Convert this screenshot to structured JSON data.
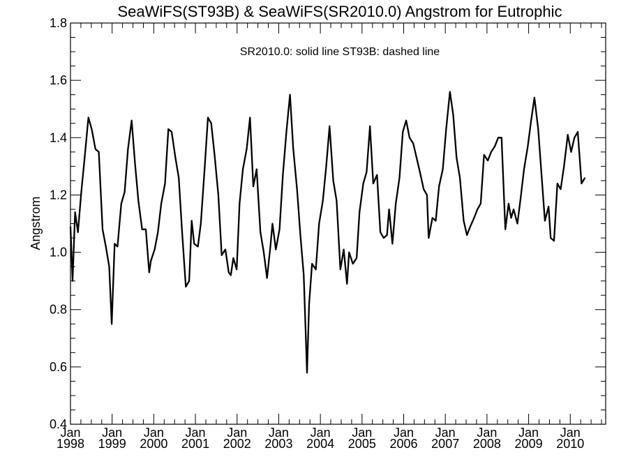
{
  "chart_data": {
    "type": "line",
    "title": "SeaWiFS(ST93B) & SeaWiFS(SR2010.0)  Angstrom for Eutrophic",
    "annotation": "SR2010.0: solid line   ST93B: dashed line",
    "xlabel": "",
    "ylabel": "Angstrom",
    "ylim": [
      0.4,
      1.8
    ],
    "yticks": [
      0.4,
      0.6,
      0.8,
      1.0,
      1.2,
      1.4,
      1.6,
      1.8
    ],
    "ytick_labels": [
      "0.4",
      "0.6",
      "0.8",
      "1.0",
      "1.2",
      "1.4",
      "1.6",
      "1.8"
    ],
    "xlim": [
      1998.0,
      2010.85
    ],
    "xticks": [
      {
        "x": 1998,
        "month": "Jan",
        "year": "1998"
      },
      {
        "x": 1999,
        "month": "Jan",
        "year": "1999"
      },
      {
        "x": 2000,
        "month": "Jan",
        "year": "2000"
      },
      {
        "x": 2001,
        "month": "Jan",
        "year": "2001"
      },
      {
        "x": 2002,
        "month": "Jan",
        "year": "2002"
      },
      {
        "x": 2003,
        "month": "Jan",
        "year": "2003"
      },
      {
        "x": 2004,
        "month": "Jan",
        "year": "2004"
      },
      {
        "x": 2005,
        "month": "Jan",
        "year": "2005"
      },
      {
        "x": 2006,
        "month": "Jan",
        "year": "2006"
      },
      {
        "x": 2007,
        "month": "Jan",
        "year": "2007"
      },
      {
        "x": 2008,
        "month": "Jan",
        "year": "2008"
      },
      {
        "x": 2009,
        "month": "Jan",
        "year": "2009"
      },
      {
        "x": 2010,
        "month": "Jan",
        "year": "2010"
      }
    ],
    "grid": false,
    "series": [
      {
        "name": "SR2010.0",
        "style": "solid",
        "color": "#000000",
        "points": [
          [
            1998.0,
            1.09
          ],
          [
            1998.05,
            0.9
          ],
          [
            1998.11,
            1.14
          ],
          [
            1998.18,
            1.07
          ],
          [
            1998.26,
            1.21
          ],
          [
            1998.34,
            1.33
          ],
          [
            1998.43,
            1.47
          ],
          [
            1998.51,
            1.43
          ],
          [
            1998.6,
            1.36
          ],
          [
            1998.68,
            1.35
          ],
          [
            1998.77,
            1.08
          ],
          [
            1998.85,
            1.02
          ],
          [
            1998.93,
            0.95
          ],
          [
            1998.99,
            0.75
          ],
          [
            1999.06,
            1.03
          ],
          [
            1999.13,
            1.02
          ],
          [
            1999.22,
            1.17
          ],
          [
            1999.3,
            1.21
          ],
          [
            1999.38,
            1.36
          ],
          [
            1999.47,
            1.46
          ],
          [
            1999.55,
            1.31
          ],
          [
            1999.63,
            1.18
          ],
          [
            1999.72,
            1.08
          ],
          [
            1999.81,
            1.08
          ],
          [
            1999.89,
            0.93
          ],
          [
            1999.93,
            0.97
          ],
          [
            2000.02,
            1.01
          ],
          [
            2000.1,
            1.07
          ],
          [
            2000.18,
            1.17
          ],
          [
            2000.27,
            1.24
          ],
          [
            2000.35,
            1.43
          ],
          [
            2000.43,
            1.42
          ],
          [
            2000.52,
            1.33
          ],
          [
            2000.6,
            1.26
          ],
          [
            2000.68,
            1.07
          ],
          [
            2000.77,
            0.88
          ],
          [
            2000.85,
            0.9
          ],
          [
            2000.91,
            1.11
          ],
          [
            2000.97,
            1.03
          ],
          [
            2001.06,
            1.02
          ],
          [
            2001.13,
            1.1
          ],
          [
            2001.22,
            1.29
          ],
          [
            2001.3,
            1.47
          ],
          [
            2001.38,
            1.45
          ],
          [
            2001.46,
            1.34
          ],
          [
            2001.55,
            1.2
          ],
          [
            2001.63,
            0.99
          ],
          [
            2001.72,
            1.01
          ],
          [
            2001.8,
            0.93
          ],
          [
            2001.85,
            0.92
          ],
          [
            2001.91,
            0.98
          ],
          [
            2001.99,
            0.94
          ],
          [
            2002.06,
            1.17
          ],
          [
            2002.14,
            1.29
          ],
          [
            2002.23,
            1.36
          ],
          [
            2002.31,
            1.47
          ],
          [
            2002.39,
            1.23
          ],
          [
            2002.47,
            1.29
          ],
          [
            2002.56,
            1.07
          ],
          [
            2002.64,
            1.0
          ],
          [
            2002.72,
            0.91
          ],
          [
            2002.8,
            1.02
          ],
          [
            2002.85,
            1.1
          ],
          [
            2002.93,
            1.01
          ],
          [
            2003.02,
            1.08
          ],
          [
            2003.1,
            1.27
          ],
          [
            2003.19,
            1.43
          ],
          [
            2003.27,
            1.55
          ],
          [
            2003.35,
            1.36
          ],
          [
            2003.44,
            1.22
          ],
          [
            2003.52,
            1.06
          ],
          [
            2003.6,
            0.92
          ],
          [
            2003.68,
            0.58
          ],
          [
            2003.73,
            0.82
          ],
          [
            2003.8,
            0.96
          ],
          [
            2003.89,
            0.94
          ],
          [
            2003.97,
            1.1
          ],
          [
            2004.06,
            1.18
          ],
          [
            2004.14,
            1.3
          ],
          [
            2004.22,
            1.44
          ],
          [
            2004.31,
            1.25
          ],
          [
            2004.39,
            1.18
          ],
          [
            2004.48,
            0.94
          ],
          [
            2004.56,
            1.01
          ],
          [
            2004.64,
            0.89
          ],
          [
            2004.69,
            1.0
          ],
          [
            2004.78,
            0.96
          ],
          [
            2004.87,
            0.98
          ],
          [
            2004.94,
            1.14
          ],
          [
            2005.03,
            1.24
          ],
          [
            2005.11,
            1.28
          ],
          [
            2005.19,
            1.44
          ],
          [
            2005.27,
            1.24
          ],
          [
            2005.36,
            1.27
          ],
          [
            2005.44,
            1.07
          ],
          [
            2005.52,
            1.05
          ],
          [
            2005.6,
            1.06
          ],
          [
            2005.65,
            1.15
          ],
          [
            2005.73,
            1.03
          ],
          [
            2005.81,
            1.17
          ],
          [
            2005.9,
            1.26
          ],
          [
            2005.98,
            1.42
          ],
          [
            2006.06,
            1.46
          ],
          [
            2006.14,
            1.4
          ],
          [
            2006.23,
            1.38
          ],
          [
            2006.31,
            1.33
          ],
          [
            2006.39,
            1.28
          ],
          [
            2006.48,
            1.22
          ],
          [
            2006.56,
            1.2
          ],
          [
            2006.6,
            1.05
          ],
          [
            2006.69,
            1.12
          ],
          [
            2006.77,
            1.11
          ],
          [
            2006.85,
            1.23
          ],
          [
            2006.94,
            1.29
          ],
          [
            2007.02,
            1.43
          ],
          [
            2007.11,
            1.56
          ],
          [
            2007.19,
            1.48
          ],
          [
            2007.27,
            1.33
          ],
          [
            2007.35,
            1.26
          ],
          [
            2007.44,
            1.11
          ],
          [
            2007.52,
            1.06
          ],
          [
            2007.6,
            1.09
          ],
          [
            2007.69,
            1.12
          ],
          [
            2007.77,
            1.15
          ],
          [
            2007.85,
            1.17
          ],
          [
            2007.93,
            1.34
          ],
          [
            2008.02,
            1.32
          ],
          [
            2008.1,
            1.35
          ],
          [
            2008.19,
            1.37
          ],
          [
            2008.27,
            1.4
          ],
          [
            2008.35,
            1.4
          ],
          [
            2008.44,
            1.08
          ],
          [
            2008.52,
            1.17
          ],
          [
            2008.58,
            1.12
          ],
          [
            2008.64,
            1.15
          ],
          [
            2008.73,
            1.1
          ],
          [
            2008.81,
            1.19
          ],
          [
            2008.89,
            1.29
          ],
          [
            2008.98,
            1.37
          ],
          [
            2009.06,
            1.46
          ],
          [
            2009.14,
            1.54
          ],
          [
            2009.23,
            1.43
          ],
          [
            2009.31,
            1.27
          ],
          [
            2009.39,
            1.11
          ],
          [
            2009.48,
            1.16
          ],
          [
            2009.53,
            1.05
          ],
          [
            2009.61,
            1.04
          ],
          [
            2009.69,
            1.24
          ],
          [
            2009.77,
            1.22
          ],
          [
            2009.85,
            1.3
          ],
          [
            2009.94,
            1.41
          ],
          [
            2010.02,
            1.35
          ],
          [
            2010.1,
            1.4
          ],
          [
            2010.18,
            1.42
          ],
          [
            2010.27,
            1.24
          ],
          [
            2010.35,
            1.26
          ]
        ]
      }
    ]
  }
}
